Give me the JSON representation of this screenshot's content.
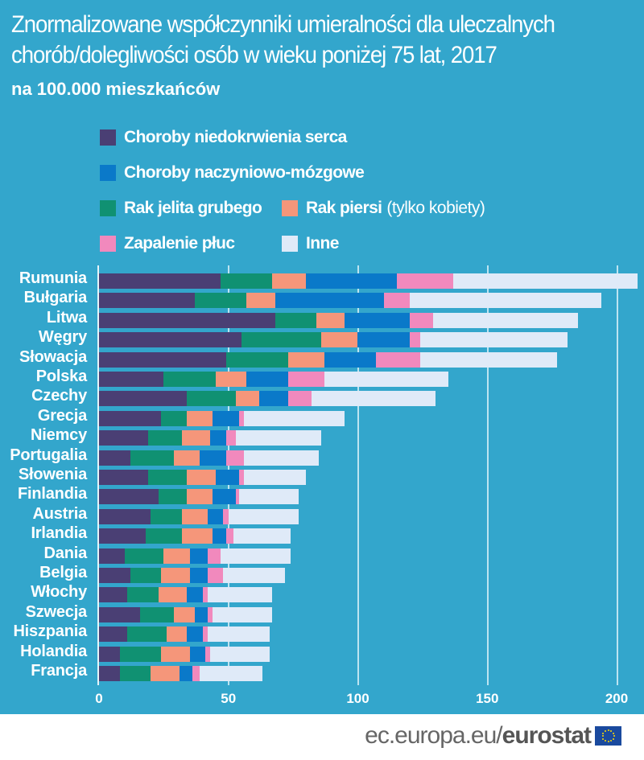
{
  "header": {
    "title_line1": "Znormalizowane współczynniki umieralności dla uleczalnych",
    "title_line2": "chorób/dolegliwości osób w wieku poniżej 75 lat, 2017",
    "subtitle": "na 100.000 mieszkańców"
  },
  "legend": {
    "items": [
      {
        "label": "Choroby niedokrwienia serca",
        "color": "#4a3f74"
      },
      {
        "label": "Choroby naczyniowo-mózgowe",
        "color": "#0a79c9"
      },
      {
        "label": "Rak jelita grubego",
        "color": "#109172"
      },
      {
        "label": "Rak piersi",
        "note": "(tylko kobiety)",
        "color": "#f5967a"
      },
      {
        "label": "Zapalenie płuc",
        "color": "#f189bd"
      },
      {
        "label": "Inne",
        "color": "#dfeaf8"
      }
    ]
  },
  "footer": {
    "url_plain": "ec.europa.eu/",
    "url_bold": "eurostat",
    "logo": "eu-flag-icon"
  },
  "chart_data": {
    "type": "bar",
    "orientation": "horizontal",
    "stacked": true,
    "title": "Znormalizowane współczynniki umieralności dla uleczalnych chorób/dolegliwości osób w wieku poniżej 75 lat, 2017",
    "subtitle": "na 100.000 mieszkańców",
    "xlabel": "",
    "ylabel": "",
    "xlim": [
      0,
      210
    ],
    "xticks": [
      0,
      50,
      100,
      150,
      200
    ],
    "grid": true,
    "legend_position": "top",
    "categories": [
      "Rumunia",
      "Bułgaria",
      "Litwa",
      "Węgry",
      "Słowacja",
      "Polska",
      "Czechy",
      "Grecja",
      "Niemcy",
      "Portugalia",
      "Słowenia",
      "Finlandia",
      "Austria",
      "Irlandia",
      "Dania",
      "Belgia",
      "Włochy",
      "Szwecja",
      "Hiszpania",
      "Holandia",
      "Francja"
    ],
    "series": [
      {
        "name": "Choroby niedokrwienia serca",
        "color": "#4a3f74",
        "values": [
          47,
          37,
          68,
          55,
          49,
          25,
          34,
          24,
          19,
          12,
          19,
          23,
          20,
          18,
          10,
          12,
          11,
          16,
          11,
          8,
          8
        ]
      },
      {
        "name": "Rak jelita grubego",
        "color": "#109172",
        "values": [
          20,
          20,
          16,
          31,
          24,
          20,
          19,
          10,
          13,
          17,
          15,
          11,
          12,
          14,
          15,
          12,
          12,
          13,
          15,
          16,
          12
        ]
      },
      {
        "name": "Rak piersi (tylko kobiety)",
        "color": "#f5967a",
        "values": [
          13,
          11,
          11,
          14,
          14,
          12,
          9,
          10,
          11,
          10,
          11,
          10,
          10,
          12,
          10,
          11,
          11,
          8,
          8,
          11,
          11
        ]
      },
      {
        "name": "Choroby naczyniowo-mózgowe",
        "color": "#0a79c9",
        "values": [
          35,
          42,
          25,
          20,
          20,
          16,
          11,
          10,
          6,
          10,
          9,
          9,
          6,
          5,
          7,
          7,
          6,
          5,
          6,
          6,
          5
        ]
      },
      {
        "name": "Zapalenie płuc",
        "color": "#f189bd",
        "values": [
          22,
          10,
          9,
          4,
          17,
          14,
          9,
          2,
          4,
          7,
          2,
          1,
          2,
          3,
          5,
          6,
          2,
          2,
          2,
          2,
          3
        ]
      },
      {
        "name": "Inne",
        "color": "#dfeaf8",
        "values": [
          71,
          74,
          56,
          57,
          53,
          48,
          48,
          39,
          33,
          29,
          24,
          23,
          27,
          22,
          27,
          24,
          25,
          23,
          24,
          23,
          24
        ]
      }
    ],
    "totals": [
      208,
      194,
      185,
      181,
      177,
      135,
      130,
      95,
      86,
      85,
      80,
      77,
      77,
      74,
      74,
      72,
      67,
      67,
      66,
      66,
      63
    ]
  }
}
